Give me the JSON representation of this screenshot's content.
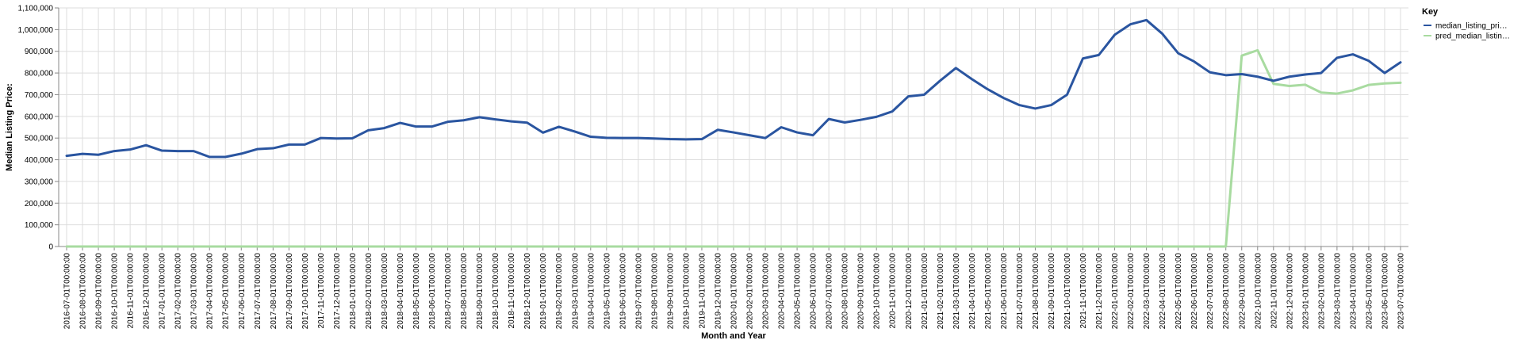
{
  "chart_data": {
    "type": "line",
    "xlabel": "Month and Year",
    "ylabel": "Median Listing Price:",
    "ylim": [
      0,
      1100000
    ],
    "yticks": [
      0,
      100000,
      200000,
      300000,
      400000,
      500000,
      600000,
      700000,
      800000,
      900000,
      1000000,
      1100000
    ],
    "ytick_labels": [
      "0",
      "100,000",
      "200,000",
      "300,000",
      "400,000",
      "500,000",
      "600,000",
      "700,000",
      "800,000",
      "900,000",
      "1,000,000",
      "1,100,000"
    ],
    "grid": true,
    "legend": {
      "title": "Key",
      "placement": "right",
      "entries": [
        "median_listing_pri…",
        "pred_median_listin…"
      ]
    },
    "x": [
      "2016-07-01T00:00:00",
      "2016-08-01T00:00:00",
      "2016-09-01T00:00:00",
      "2016-10-01T00:00:00",
      "2016-11-01T00:00:00",
      "2016-12-01T00:00:00",
      "2017-01-01T00:00:00",
      "2017-02-01T00:00:00",
      "2017-03-01T00:00:00",
      "2017-04-01T00:00:00",
      "2017-05-01T00:00:00",
      "2017-06-01T00:00:00",
      "2017-07-01T00:00:00",
      "2017-08-01T00:00:00",
      "2017-09-01T00:00:00",
      "2017-10-01T00:00:00",
      "2017-11-01T00:00:00",
      "2017-12-01T00:00:00",
      "2018-01-01T00:00:00",
      "2018-02-01T00:00:00",
      "2018-03-01T00:00:00",
      "2018-04-01T00:00:00",
      "2018-05-01T00:00:00",
      "2018-06-01T00:00:00",
      "2018-07-01T00:00:00",
      "2018-08-01T00:00:00",
      "2018-09-01T00:00:00",
      "2018-10-01T00:00:00",
      "2018-11-01T00:00:00",
      "2018-12-01T00:00:00",
      "2019-01-01T00:00:00",
      "2019-02-01T00:00:00",
      "2019-03-01T00:00:00",
      "2019-04-01T00:00:00",
      "2019-05-01T00:00:00",
      "2019-06-01T00:00:00",
      "2019-07-01T00:00:00",
      "2019-08-01T00:00:00",
      "2019-09-01T00:00:00",
      "2019-10-01T00:00:00",
      "2019-11-01T00:00:00",
      "2019-12-01T00:00:00",
      "2020-01-01T00:00:00",
      "2020-02-01T00:00:00",
      "2020-03-01T00:00:00",
      "2020-04-01T00:00:00",
      "2020-05-01T00:00:00",
      "2020-06-01T00:00:00",
      "2020-07-01T00:00:00",
      "2020-08-01T00:00:00",
      "2020-09-01T00:00:00",
      "2020-10-01T00:00:00",
      "2020-11-01T00:00:00",
      "2020-12-01T00:00:00",
      "2021-01-01T00:00:00",
      "2021-02-01T00:00:00",
      "2021-03-01T00:00:00",
      "2021-04-01T00:00:00",
      "2021-05-01T00:00:00",
      "2021-06-01T00:00:00",
      "2021-07-01T00:00:00",
      "2021-08-01T00:00:00",
      "2021-09-01T00:00:00",
      "2021-10-01T00:00:00",
      "2021-11-01T00:00:00",
      "2021-12-01T00:00:00",
      "2022-01-01T00:00:00",
      "2022-02-01T00:00:00",
      "2022-03-01T00:00:00",
      "2022-04-01T00:00:00",
      "2022-05-01T00:00:00",
      "2022-06-01T00:00:00",
      "2022-07-01T00:00:00",
      "2022-08-01T00:00:00",
      "2022-09-01T00:00:00",
      "2022-10-01T00:00:00",
      "2022-11-01T00:00:00",
      "2022-12-01T00:00:00",
      "2023-01-01T00:00:00",
      "2023-02-01T00:00:00",
      "2023-03-01T00:00:00",
      "2023-04-01T00:00:00",
      "2023-05-01T00:00:00",
      "2023-06-01T00:00:00",
      "2023-07-01T00:00:00"
    ],
    "series": [
      {
        "name": "median_listing_pri…",
        "color": "#2a55a0",
        "values": [
          418000,
          427000,
          423000,
          440000,
          447000,
          467000,
          442000,
          440000,
          440000,
          413000,
          413000,
          428000,
          449000,
          453000,
          470000,
          470000,
          500000,
          498000,
          499000,
          536000,
          546000,
          570000,
          553000,
          553000,
          575000,
          582000,
          596000,
          586000,
          577000,
          571000,
          525000,
          552000,
          530000,
          506000,
          501000,
          500000,
          500000,
          498000,
          495000,
          494000,
          495000,
          538000,
          526000,
          513000,
          500000,
          550000,
          526000,
          513000,
          588000,
          572000,
          584000,
          598000,
          623000,
          692000,
          700000,
          764000,
          823000,
          772000,
          725000,
          685000,
          652000,
          636000,
          652000,
          700000,
          867000,
          883000,
          976000,
          1025000,
          1044000,
          981000,
          891000,
          853000,
          803000,
          790000,
          795000,
          783000,
          764000,
          783000,
          793000,
          800000,
          870000,
          886000,
          856000,
          800000,
          849000
        ]
      },
      {
        "name": "pred_median_listin…",
        "color": "#a8dba0",
        "values": [
          0,
          0,
          0,
          0,
          0,
          0,
          0,
          0,
          0,
          0,
          0,
          0,
          0,
          0,
          0,
          0,
          0,
          0,
          0,
          0,
          0,
          0,
          0,
          0,
          0,
          0,
          0,
          0,
          0,
          0,
          0,
          0,
          0,
          0,
          0,
          0,
          0,
          0,
          0,
          0,
          0,
          0,
          0,
          0,
          0,
          0,
          0,
          0,
          0,
          0,
          0,
          0,
          0,
          0,
          0,
          0,
          0,
          0,
          0,
          0,
          0,
          0,
          0,
          0,
          0,
          0,
          0,
          0,
          0,
          0,
          0,
          0,
          0,
          0,
          880000,
          905000,
          750000,
          740000,
          746000,
          710000,
          705000,
          720000,
          745000,
          752000,
          755000
        ]
      }
    ]
  }
}
